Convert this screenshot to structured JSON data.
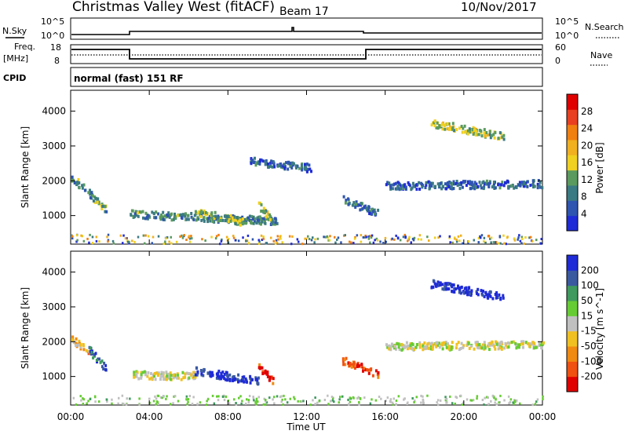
{
  "header": {
    "title": "Christmas Valley West (fitACF)",
    "beam": "Beam 17",
    "date": "10/Nov/2017"
  },
  "status_panel": {
    "nsky_label": "N.Sky",
    "nsearch_label": "N.Search",
    "nsky_ticks": [
      "10^5",
      "10^0"
    ],
    "freq_label_1": "Freq.",
    "freq_label_2": "[MHz]",
    "freq_ticks": [
      "18",
      "8"
    ],
    "nave_label": "Nave",
    "nave_ticks": [
      "60",
      "0"
    ],
    "cpid_label": "CPID",
    "cpid_text": "normal (fast) 151 RF"
  },
  "chart_data": [
    {
      "type": "heatmap",
      "name": "power",
      "ylabel": "Slant Range [km]",
      "ylim": [
        180,
        4600
      ],
      "y_ticks": [
        1000,
        2000,
        3000,
        4000
      ],
      "xlim": [
        0,
        24
      ],
      "colorbar_label": "Power [dB]",
      "colorbar_ticks": [
        "4",
        "8",
        "12",
        "16",
        "20",
        "24",
        "28"
      ],
      "colorscale": [
        "#1f2bd6",
        "#2e55b0",
        "#3a7a82",
        "#5a9a5e",
        "#f0d020",
        "#f0b020",
        "#f08010",
        "#e84020",
        "#e00000"
      ],
      "features": [
        {
          "t0": 0.0,
          "t1": 1.8,
          "r0": 2150,
          "r1": 1200,
          "level": 0.35
        },
        {
          "t0": 3.0,
          "t1": 10.5,
          "r0": 1080,
          "r1": 880,
          "level": 0.3
        },
        {
          "t0": 6.3,
          "t1": 8.8,
          "r0": 1150,
          "r1": 850,
          "level": 0.4
        },
        {
          "t0": 9.5,
          "t1": 10.3,
          "r0": 1350,
          "r1": 850,
          "level": 0.45
        },
        {
          "t0": 13.8,
          "t1": 15.6,
          "r0": 1500,
          "r1": 1100,
          "level": 0.25
        },
        {
          "t0": 18.3,
          "t1": 22.0,
          "r0": 3700,
          "r1": 3300,
          "level": 0.45
        },
        {
          "t0": 9.0,
          "t1": 12.2,
          "r0": 2600,
          "r1": 2400,
          "level": 0.2
        },
        {
          "t0": 16.0,
          "t1": 24.0,
          "r0": 1900,
          "r1": 1950,
          "level": 0.2
        }
      ]
    },
    {
      "type": "heatmap",
      "name": "velocity",
      "ylabel": "Slant Range [km]",
      "ylim": [
        180,
        4600
      ],
      "y_ticks": [
        1000,
        2000,
        3000,
        4000
      ],
      "xlim": [
        0,
        24
      ],
      "colorbar_label": "Velocity [m s^-1]",
      "colorbar_ticks": [
        "200",
        "100",
        "50",
        "15",
        "-15",
        "-50",
        "-100",
        "-200"
      ],
      "colorscale": [
        "#1f2bd6",
        "#3a5aa0",
        "#3e9a5e",
        "#66cc33",
        "#c0c0c0",
        "#f0c020",
        "#f08a10",
        "#f05010",
        "#e00000"
      ],
      "features": [
        {
          "t0": 0.0,
          "t1": 0.9,
          "r0": 2100,
          "r1": 1800,
          "level": 0.65
        },
        {
          "t0": 0.9,
          "t1": 1.8,
          "r0": 1800,
          "r1": 1250,
          "level": 0.15
        },
        {
          "t0": 3.0,
          "t1": 6.3,
          "r0": 1080,
          "r1": 1050,
          "level": 0.5
        },
        {
          "t0": 6.3,
          "t1": 9.5,
          "r0": 1200,
          "r1": 900,
          "level": 0.05
        },
        {
          "t0": 9.5,
          "t1": 10.3,
          "r0": 1300,
          "r1": 900,
          "level": 0.9
        },
        {
          "t0": 13.8,
          "t1": 15.6,
          "r0": 1500,
          "r1": 1100,
          "level": 0.85
        },
        {
          "t0": 18.3,
          "t1": 22.0,
          "r0": 3700,
          "r1": 3300,
          "level": 0.0
        },
        {
          "t0": 16.0,
          "t1": 24.0,
          "r0": 1900,
          "r1": 1950,
          "level": 0.5
        }
      ]
    }
  ],
  "x_axis": {
    "label": "Time UT",
    "ticks": [
      "00:00",
      "04:00",
      "08:00",
      "12:00",
      "16:00",
      "20:00",
      "00:00"
    ],
    "tick_hours": [
      0,
      4,
      8,
      12,
      16,
      20,
      24
    ]
  }
}
